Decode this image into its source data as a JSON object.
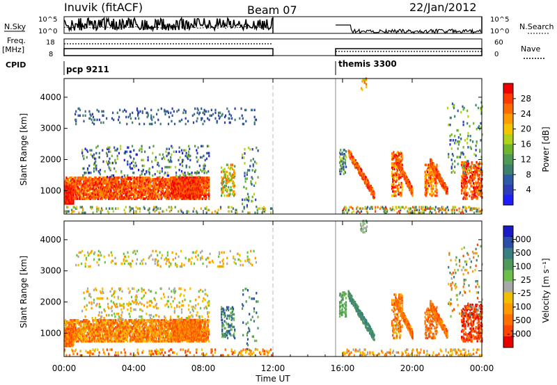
{
  "header": {
    "station": "Inuvik (fitACF)",
    "beam": "Beam 07",
    "date": "22/Jan/2012"
  },
  "left_labels": {
    "nsky": "N.Sky",
    "freq": "Freq.",
    "freq_unit": "[MHz]",
    "cpid": "CPID"
  },
  "right_labels": {
    "nsearch": "N.Search",
    "nave": "Nave"
  },
  "cpid_modes": [
    {
      "label": "pcp 9211",
      "start": 0,
      "end": 12
    },
    {
      "label": "themis 3300",
      "start": 15.5,
      "end": 24
    }
  ],
  "colors": {
    "power": [
      "#1e1eff",
      "#2d3fb8",
      "#2e5aa6",
      "#3f7f6f",
      "#4f9a55",
      "#6fb52e",
      "#b0d21a",
      "#f5c400",
      "#ff9a00",
      "#ff6a00",
      "#ff3a00",
      "#ee0000"
    ],
    "velocity": [
      "#1a1ac8",
      "#2b4fa8",
      "#3a7f80",
      "#4f9a5a",
      "#6cc04a",
      "#a8a8a8",
      "#f0c000",
      "#ff9b00",
      "#ff7000",
      "#ff4500",
      "#e60000"
    ]
  },
  "chart_data": [
    {
      "type": "line",
      "name": "nsky-nsearch",
      "ylabels_left": [
        "10^5",
        "10^0"
      ],
      "ylabels_right": [
        "10^5",
        "10^0"
      ],
      "x_range": [
        0,
        24
      ]
    },
    {
      "type": "line",
      "name": "freq-nave",
      "ylabels_left": [
        "18",
        "8"
      ],
      "ylabels_right": [
        "60",
        "0"
      ],
      "x_range": [
        0,
        24
      ]
    },
    {
      "type": "heatmap",
      "name": "power",
      "xlabel": "",
      "ylabel": "Slant Range [km]",
      "yticks": [
        1000,
        2000,
        3000,
        4000
      ],
      "ylim": [
        250,
        4600
      ],
      "colorbar_label": "Power [dB]",
      "colorbar_ticks": [
        4,
        8,
        12,
        16,
        20,
        24,
        28
      ],
      "colorbar_range": [
        0,
        32
      ]
    },
    {
      "type": "heatmap",
      "name": "velocity",
      "xlabel": "Time UT",
      "ylabel": "Slant Range [km]",
      "yticks": [
        1000,
        2000,
        3000,
        4000
      ],
      "ylim": [
        250,
        4600
      ],
      "colorbar_label": "Velocity [m s⁻¹]",
      "colorbar_ticks": [
        "1000",
        "500",
        "100",
        "25",
        "-25",
        "-100",
        "-500",
        "-1000"
      ]
    }
  ],
  "xaxis": {
    "label": "Time UT",
    "ticks": [
      "00:00",
      "04:00",
      "08:00",
      "12:00",
      "16:00",
      "20:00",
      "00:00"
    ]
  }
}
